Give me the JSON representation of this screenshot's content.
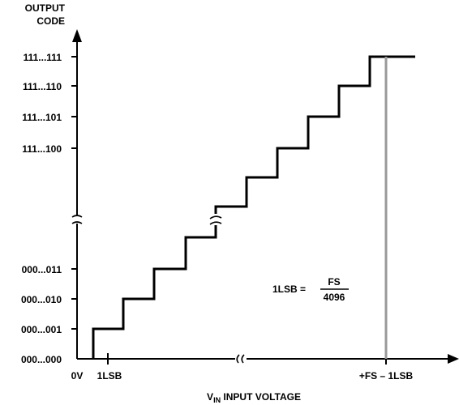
{
  "diagram": {
    "y_axis_title": [
      "OUTPUT",
      "CODE"
    ],
    "x_axis_title": {
      "main": "V",
      "subscript": "IN",
      "rest": " INPUT VOLTAGE"
    },
    "y_codes": [
      "111...111",
      "111...110",
      "111...101",
      "111...100",
      "000...011",
      "000...010",
      "000...001",
      "000...000"
    ],
    "x_labels": [
      "0V",
      "1LSB",
      "+FS – 1LSB"
    ],
    "formula": {
      "lhs": "1LSB =",
      "numerator": "FS",
      "denominator": "4096"
    },
    "colors": {
      "staircase": "#000000",
      "fullscale_marker": "#999999",
      "axes": "#000000"
    }
  }
}
